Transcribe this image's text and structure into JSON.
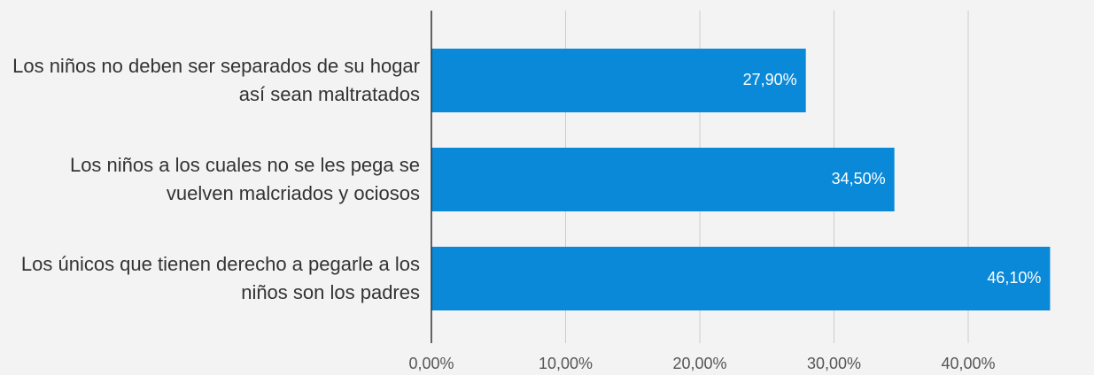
{
  "chart_data": {
    "type": "bar",
    "orientation": "horizontal",
    "categories": [
      "Los niños no deben ser separados de su hogar así sean maltratados",
      "Los niños a los cuales no se les pega se vuelven malcriados y ociosos",
      "Los únicos que tienen derecho a pegarle a los niños son los padres"
    ],
    "values": [
      27.9,
      34.5,
      46.1
    ],
    "value_labels": [
      "27,90%",
      "34,50%",
      "46,10%"
    ],
    "color": "#0a89d8",
    "xlim": [
      0,
      50
    ],
    "xticks": [
      {
        "value": 0,
        "label": "0,00%"
      },
      {
        "value": 10,
        "label": "10,00%"
      },
      {
        "value": 20,
        "label": "20,00%"
      },
      {
        "value": 30,
        "label": "30,00%"
      },
      {
        "value": 40,
        "label": "40,00%"
      }
    ],
    "grid": true
  }
}
